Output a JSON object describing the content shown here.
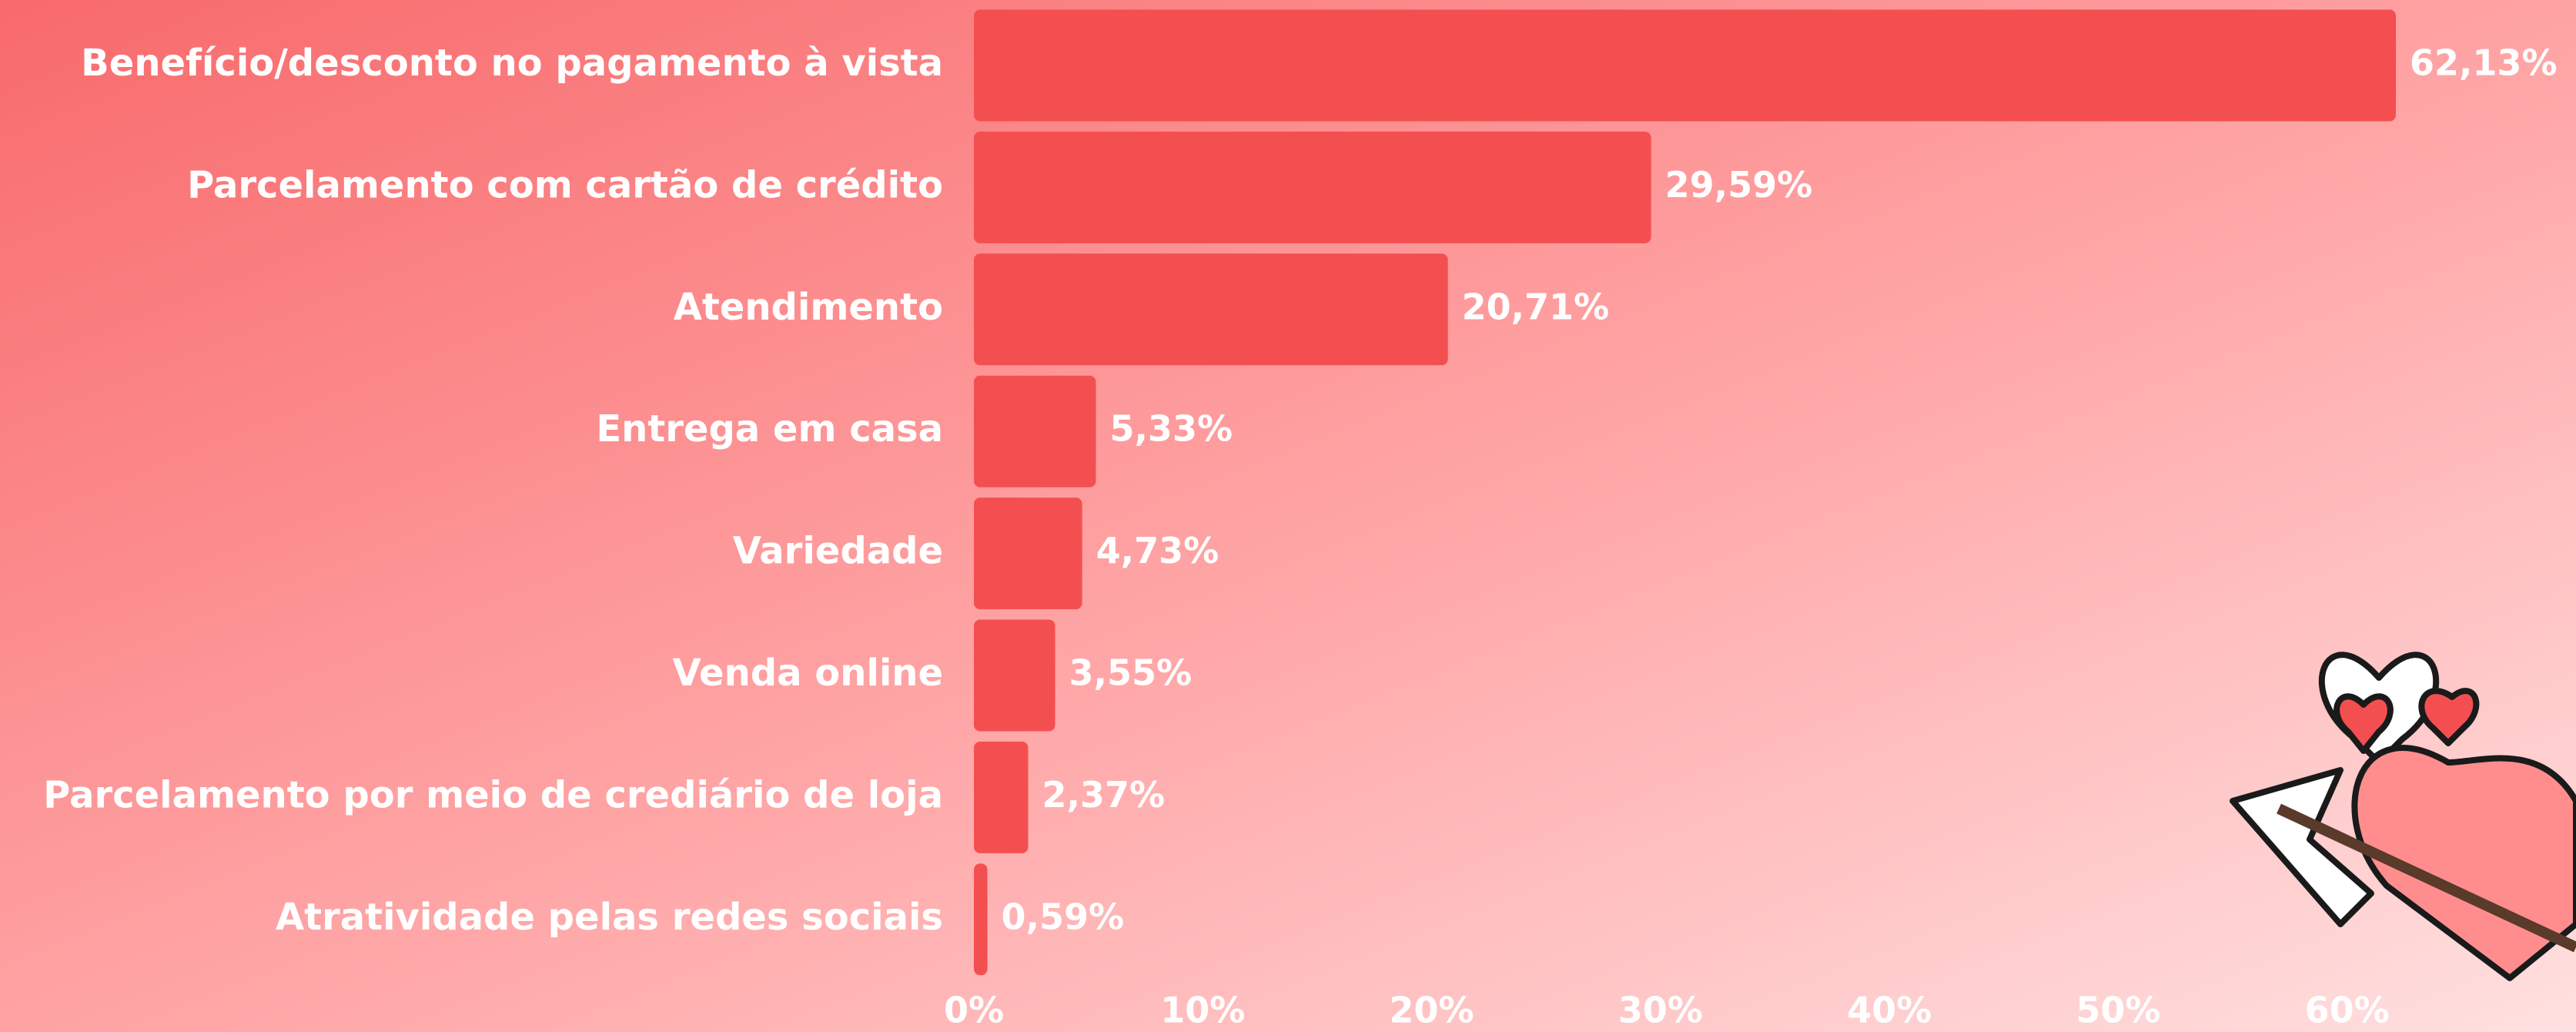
{
  "chart_data": {
    "type": "bar",
    "orientation": "horizontal",
    "categories": [
      "Benefício/desconto no pagamento à vista",
      "Parcelamento com cartão de crédito",
      "Atendimento",
      "Entrega em casa",
      "Variedade",
      "Venda online",
      "Parcelamento por meio de crediário de loja",
      "Atratividade pelas redes sociais"
    ],
    "values": [
      62.13,
      29.59,
      20.71,
      5.33,
      4.73,
      3.55,
      2.37,
      0.59
    ],
    "value_labels": [
      "62,13%",
      "29,59%",
      "20,71%",
      "5,33%",
      "4,73%",
      "3,55%",
      "2,37%",
      "0,59%"
    ],
    "color": "#f44f50",
    "xlim": [
      0,
      70
    ],
    "xticks": [
      {
        "value": 0,
        "label": "0%"
      },
      {
        "value": 10,
        "label": "10%"
      },
      {
        "value": 20,
        "label": "20%"
      },
      {
        "value": 30,
        "label": "30%"
      },
      {
        "value": 40,
        "label": "40%"
      },
      {
        "value": 50,
        "label": "50%"
      },
      {
        "value": 60,
        "label": "60%"
      }
    ],
    "grid": false
  }
}
